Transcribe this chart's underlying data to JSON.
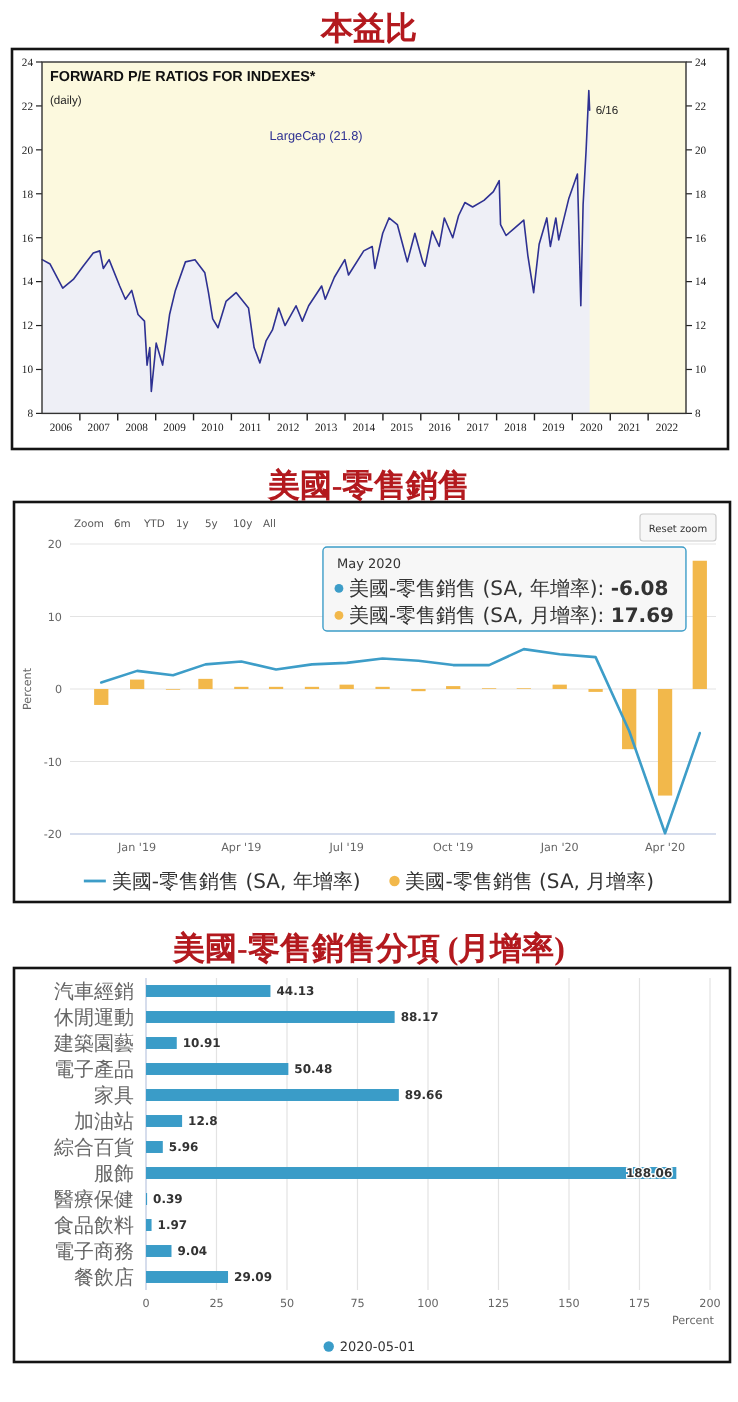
{
  "chart_data": [
    {
      "type": "area",
      "title": "本益比",
      "subtitle": "FORWARD P/E RATIOS FOR INDEXES*",
      "annotations": [
        "(daily)",
        {
          "text": "6/16",
          "x": "2020-06-16",
          "y": 21.8
        }
      ],
      "x": [
        "2006-01-03",
        "2006-03-20",
        "2006-07-20",
        "2006-10-30",
        "2007-02-01",
        "2007-05-10",
        "2007-07-12",
        "2007-08-15",
        "2007-10-10",
        "2008-01-20",
        "2008-03-15",
        "2008-05-15",
        "2008-07-15",
        "2008-09-15",
        "2008-10-10",
        "2008-11-05",
        "2008-11-20",
        "2009-01-06",
        "2009-03-09",
        "2009-05-15",
        "2009-07-10",
        "2009-10-15",
        "2010-01-15",
        "2010-04-20",
        "2010-05-25",
        "2010-07-05",
        "2010-08-25",
        "2010-11-10",
        "2011-02-15",
        "2011-06-15",
        "2011-08-08",
        "2011-10-03",
        "2011-12-01",
        "2012-02-01",
        "2012-04-01",
        "2012-06-01",
        "2012-09-15",
        "2012-11-15",
        "2013-01-15",
        "2013-05-20",
        "2013-06-24",
        "2013-09-20",
        "2013-12-30",
        "2014-02-03",
        "2014-06-30",
        "2014-09-20",
        "2014-10-15",
        "2014-12-30",
        "2015-03-01",
        "2015-05-20",
        "2015-08-24",
        "2015-11-05",
        "2016-01-20",
        "2016-02-11",
        "2016-04-20",
        "2016-06-27",
        "2016-08-15",
        "2016-11-04",
        "2016-12-30",
        "2017-03-01",
        "2017-05-15",
        "2017-09-01",
        "2017-12-01",
        "2018-01-26",
        "2018-02-08",
        "2018-04-02",
        "2018-06-15",
        "2018-09-20",
        "2018-10-29",
        "2018-12-24",
        "2019-02-15",
        "2019-04-30",
        "2019-06-03",
        "2019-07-26",
        "2019-08-23",
        "2019-11-29",
        "2020-02-19",
        "2020-03-23",
        "2020-04-14",
        "2020-05-13",
        "2020-06-08",
        "2020-06-16"
      ],
      "series": [
        {
          "name": "LargeCap (21.8)",
          "color": "#2e3192",
          "values": [
            15.0,
            14.8,
            13.7,
            14.1,
            14.7,
            15.3,
            15.4,
            14.6,
            15.0,
            13.8,
            13.2,
            13.6,
            12.5,
            12.2,
            10.2,
            11.0,
            9.0,
            11.2,
            10.2,
            12.5,
            13.6,
            14.9,
            15.0,
            14.4,
            13.5,
            12.3,
            11.9,
            13.1,
            13.5,
            12.8,
            11.0,
            10.3,
            11.3,
            11.8,
            12.8,
            12.0,
            12.9,
            12.2,
            12.9,
            13.8,
            13.2,
            14.2,
            15.0,
            14.3,
            15.4,
            15.6,
            14.6,
            16.2,
            16.9,
            16.6,
            14.9,
            16.2,
            14.9,
            14.7,
            16.3,
            15.6,
            16.9,
            16.0,
            17.0,
            17.6,
            17.4,
            17.7,
            18.1,
            18.6,
            16.6,
            16.1,
            16.4,
            16.8,
            15.2,
            13.5,
            15.7,
            16.9,
            15.6,
            16.9,
            15.9,
            17.8,
            18.9,
            12.9,
            17.5,
            20.0,
            22.7,
            21.8
          ]
        }
      ],
      "xlim": [
        "2006-01-01",
        "2023-01-01"
      ],
      "xticks": [
        {
          "value": "2006-07-02",
          "label": "2006"
        },
        {
          "value": "2007-01-01",
          "label": null
        },
        {
          "value": "2007-07-02",
          "label": "2007"
        },
        {
          "value": "2008-01-01",
          "label": null
        },
        {
          "value": "2008-07-02",
          "label": "2008"
        },
        {
          "value": "2009-01-01",
          "label": null
        },
        {
          "value": "2009-07-02",
          "label": "2009"
        },
        {
          "value": "2010-01-01",
          "label": null
        },
        {
          "value": "2010-07-02",
          "label": "2010"
        },
        {
          "value": "2011-01-01",
          "label": null
        },
        {
          "value": "2011-07-02",
          "label": "2011"
        },
        {
          "value": "2012-01-01",
          "label": null
        },
        {
          "value": "2012-07-02",
          "label": "2012"
        },
        {
          "value": "2013-01-01",
          "label": null
        },
        {
          "value": "2013-07-02",
          "label": "2013"
        },
        {
          "value": "2014-01-01",
          "label": null
        },
        {
          "value": "2014-07-02",
          "label": "2014"
        },
        {
          "value": "2015-01-01",
          "label": null
        },
        {
          "value": "2015-07-02",
          "label": "2015"
        },
        {
          "value": "2016-01-01",
          "label": null
        },
        {
          "value": "2016-07-02",
          "label": "2016"
        },
        {
          "value": "2017-01-01",
          "label": null
        },
        {
          "value": "2017-07-02",
          "label": "2017"
        },
        {
          "value": "2018-01-01",
          "label": null
        },
        {
          "value": "2018-07-02",
          "label": "2018"
        },
        {
          "value": "2019-01-01",
          "label": null
        },
        {
          "value": "2019-07-02",
          "label": "2019"
        },
        {
          "value": "2020-01-01",
          "label": null
        },
        {
          "value": "2020-07-02",
          "label": "2020"
        },
        {
          "value": "2021-01-01",
          "label": null
        },
        {
          "value": "2021-07-02",
          "label": "2021"
        },
        {
          "value": "2022-01-01",
          "label": null
        },
        {
          "value": "2022-07-02",
          "label": "2022"
        }
      ],
      "ylim": [
        8,
        24
      ],
      "yticks": [
        8,
        10,
        12,
        14,
        16,
        18,
        20,
        22,
        24
      ],
      "y2lim": [
        8,
        24
      ],
      "y2ticks": [
        8,
        10,
        12,
        14,
        16,
        18,
        20,
        22,
        24
      ]
    },
    {
      "type": "line",
      "title": "美國-零售銷售",
      "ylabel": "Percent",
      "annotations": [
        "Zoom",
        "6m",
        "YTD",
        "1y",
        "5y",
        "10y",
        "All",
        "Reset zoom",
        "May 2020",
        "美國-零售銷售 (SA, 年增率): -6.08",
        "美國-零售銷售 (SA, 月增率): 17.69"
      ],
      "x": [
        "2018-12",
        "2019-01",
        "2019-02",
        "2019-03",
        "2019-04",
        "2019-05",
        "2019-06",
        "2019-07",
        "2019-08",
        "2019-09",
        "2019-10",
        "2019-11",
        "2019-12",
        "2020-01",
        "2020-02",
        "2020-03",
        "2020-04",
        "2020-05"
      ],
      "series": [
        {
          "name": "美國-零售銷售 (SA, 年增率)",
          "color": "#3d9dc8",
          "values": [
            0.9,
            2.5,
            1.9,
            3.4,
            3.8,
            2.7,
            3.4,
            3.6,
            4.2,
            3.9,
            3.3,
            3.3,
            5.5,
            4.8,
            4.4,
            -5.8,
            -19.9,
            -6.08
          ]
        },
        {
          "name": "美國-零售銷售 (SA, 月增率)",
          "type": "bar",
          "color": "#f2b84b",
          "values": [
            -2.2,
            1.3,
            -0.1,
            1.4,
            0.3,
            0.3,
            0.3,
            0.6,
            0.3,
            -0.3,
            0.4,
            0.1,
            0.1,
            0.6,
            -0.4,
            -8.3,
            -14.7,
            17.69
          ]
        }
      ],
      "xlim": [
        "2018-11-04",
        "2020-05-15"
      ],
      "xticks": [
        {
          "value": "2019-01",
          "label": "Jan '19"
        },
        {
          "value": "2019-04",
          "label": "Apr '19"
        },
        {
          "value": "2019-07",
          "label": "Jul '19"
        },
        {
          "value": "2019-10",
          "label": "Oct '19"
        },
        {
          "value": "2020-01",
          "label": "Jan '20"
        },
        {
          "value": "2020-04",
          "label": "Apr '20"
        }
      ],
      "ylim": [
        -20,
        20
      ],
      "yticks": [
        -20,
        -10,
        0,
        10,
        20
      ],
      "grid": "y",
      "legend": "bottom"
    },
    {
      "type": "bar",
      "orientation": "horizontal",
      "title": "美國-零售銷售分項 (月增率)",
      "xlabel": "Percent",
      "categories": [
        "汽車經銷",
        "休閒運動",
        "建築園藝",
        "電子產品",
        "家具",
        "加油站",
        "綜合百貨",
        "服飾",
        "醫療保健",
        "食品飲料",
        "電子商務",
        "餐飲店"
      ],
      "series": [
        {
          "name": "2020-05-01",
          "color": "#3a9cc8",
          "values": [
            44.13,
            88.17,
            10.91,
            50.48,
            89.66,
            12.8,
            5.96,
            188.06,
            0.39,
            1.97,
            9.04,
            29.09
          ]
        }
      ],
      "xlim": [
        0,
        200
      ],
      "xticks": [
        0,
        25,
        50,
        75,
        100,
        125,
        150,
        175,
        200
      ],
      "grid": "x",
      "legend": "bottom",
      "data_labels": true
    }
  ]
}
